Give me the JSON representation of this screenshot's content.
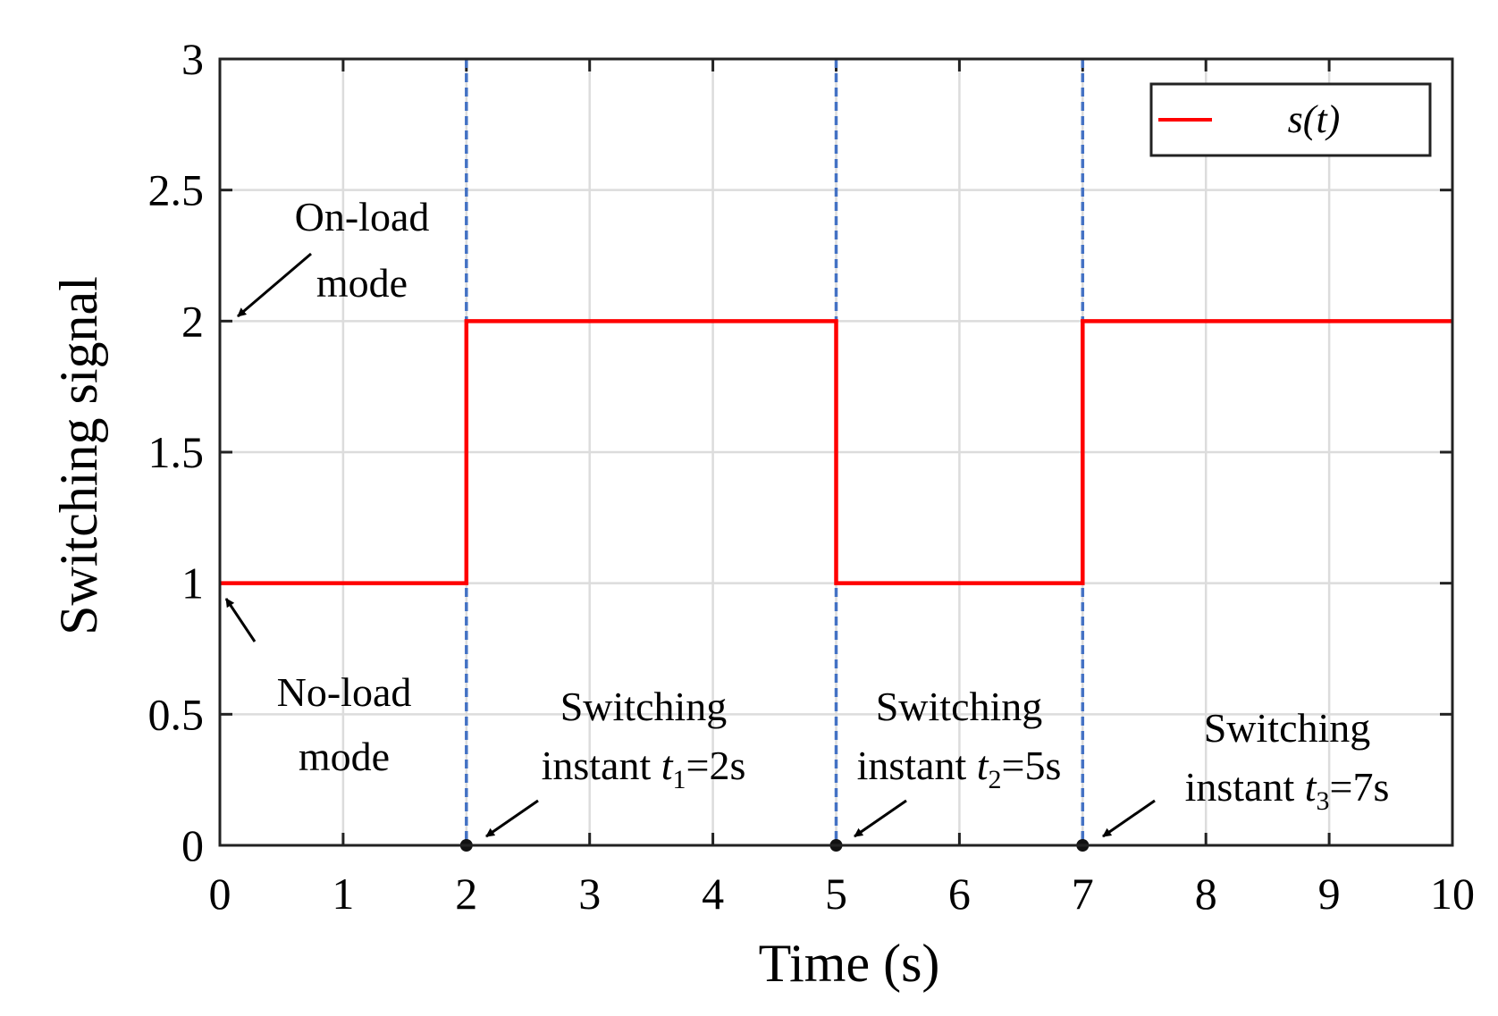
{
  "chart_data": {
    "type": "line",
    "title": "",
    "xlabel": "Time (s)",
    "ylabel": "Switching signal",
    "xlim": [
      0,
      10
    ],
    "ylim": [
      0,
      3
    ],
    "xticks": [
      0,
      1,
      2,
      3,
      4,
      5,
      6,
      7,
      8,
      9,
      10
    ],
    "xtick_labels": [
      "0",
      "1",
      "2",
      "3",
      "4",
      "5",
      "6",
      "7",
      "8",
      "9",
      "10"
    ],
    "yticks": [
      0,
      0.5,
      1,
      1.5,
      2,
      2.5,
      3
    ],
    "ytick_labels": [
      "0",
      "0.5",
      "1",
      "1.5",
      "2",
      "2.5",
      "3"
    ],
    "grid": true,
    "series": [
      {
        "name": "s(t)",
        "color": "#ff0000",
        "x": [
          0,
          2,
          2,
          5,
          5,
          7,
          7,
          10
        ],
        "y": [
          1,
          1,
          2,
          2,
          1,
          1,
          2,
          2
        ]
      }
    ],
    "switching_lines": {
      "color": "#4472c4",
      "x": [
        2,
        5,
        7
      ]
    },
    "legend": {
      "location": "top-right",
      "label_prefix": "s(",
      "label_var": "t",
      "label_suffix": ")"
    },
    "annotations": {
      "on_load": {
        "line1": "On-load",
        "line2": "mode"
      },
      "no_load": {
        "line1": "No-load",
        "line2": "mode"
      },
      "instants": [
        {
          "title": "Switching",
          "prefix": "instant ",
          "var": "t",
          "sub": "1",
          "value": "=2s"
        },
        {
          "title": "Switching",
          "prefix": "instant ",
          "var": "t",
          "sub": "2",
          "value": "=5s"
        },
        {
          "title": "Switching",
          "prefix": "instant ",
          "var": "t",
          "sub": "3",
          "value": "=7s"
        }
      ]
    }
  }
}
